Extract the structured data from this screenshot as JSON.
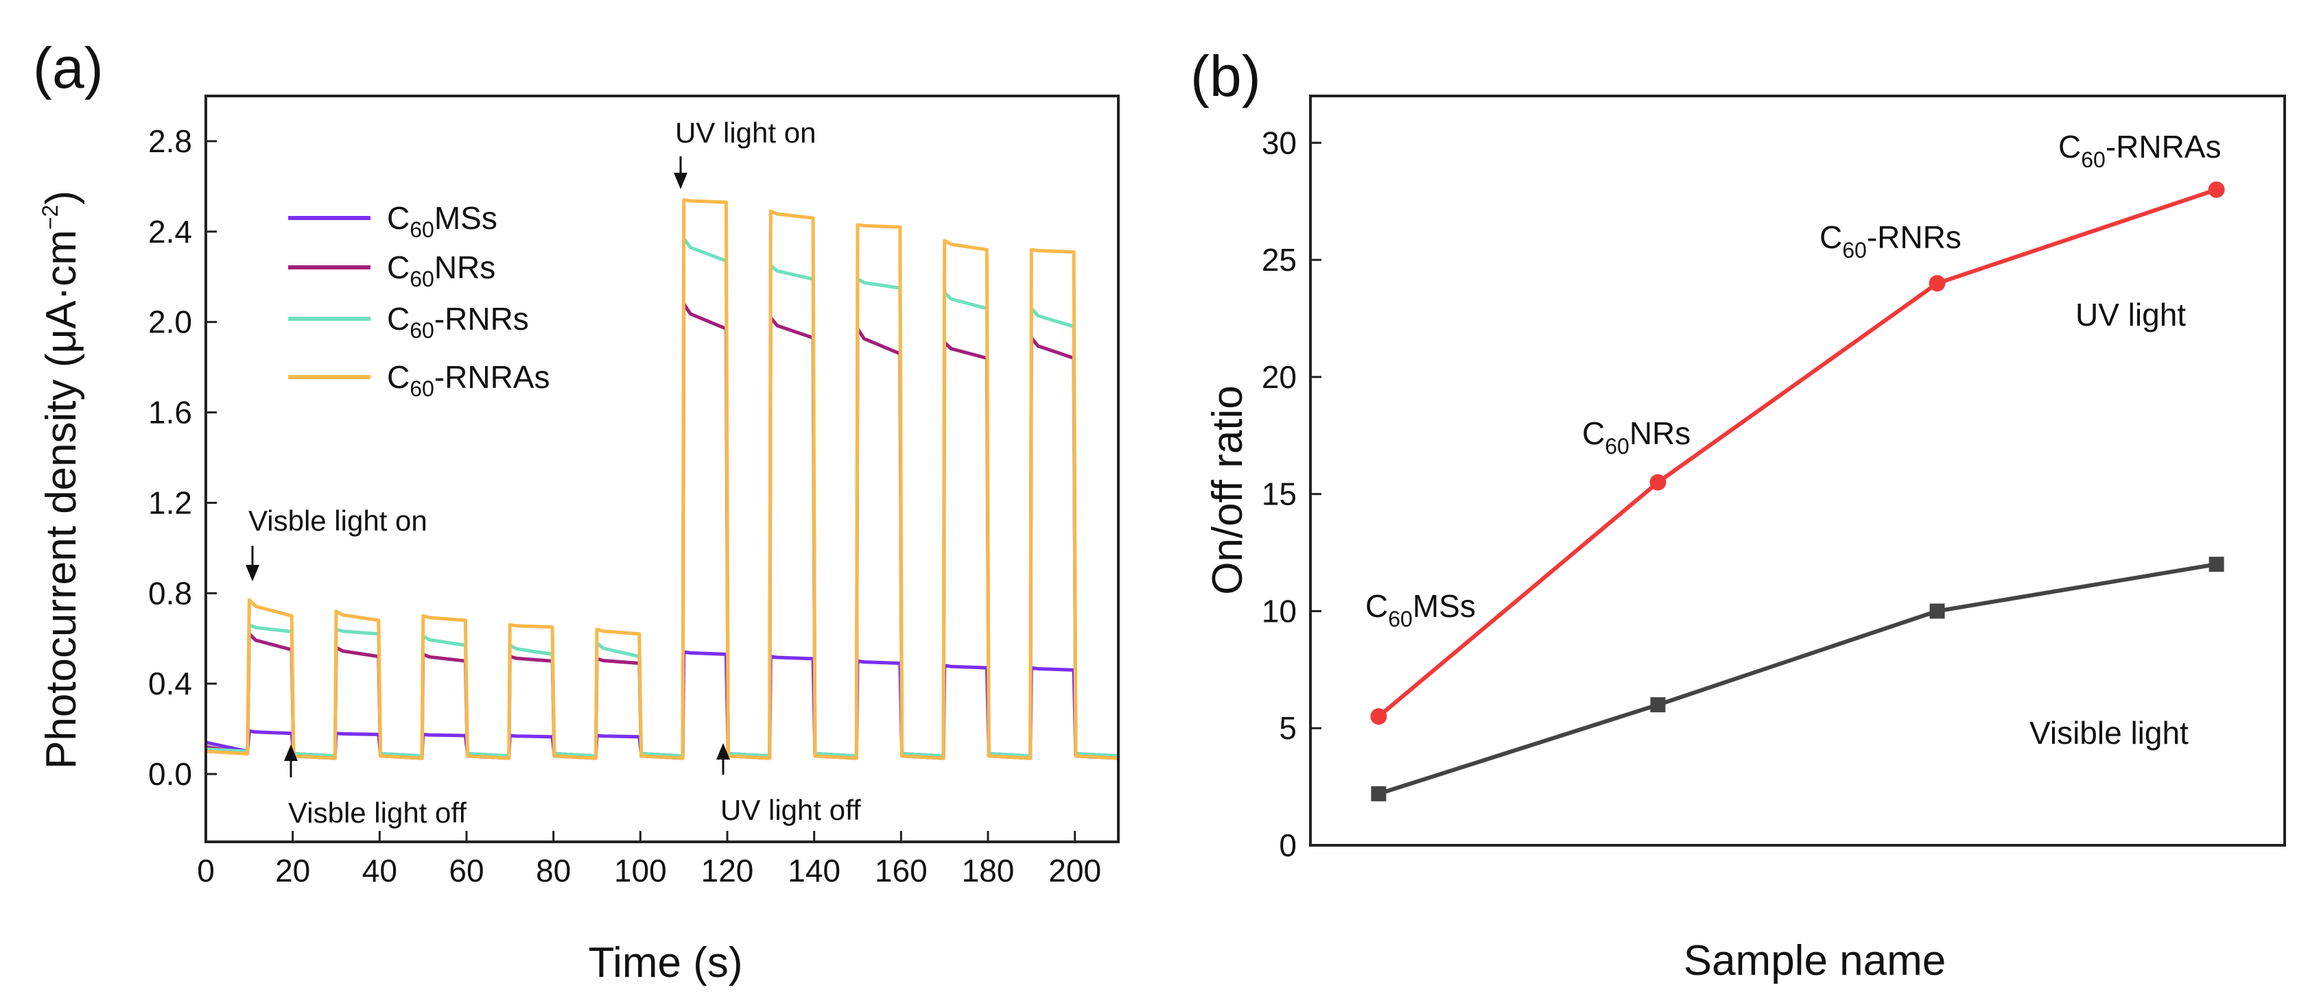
{
  "chart_data": [
    {
      "panel": "(a)",
      "type": "line",
      "xlabel": "Time (s)",
      "ylabel": "Photocurrent density (μA·cm⁻²)",
      "ylabel_parts": {
        "main": "Photocurrent density (μA·cm",
        "sup": "−2",
        "close": ")"
      },
      "xlim": [
        0,
        210
      ],
      "ylim": [
        -0.3,
        3.0
      ],
      "xticks": [
        0,
        20,
        40,
        60,
        80,
        100,
        120,
        140,
        160,
        180,
        200
      ],
      "yticks": [
        0.0,
        0.4,
        0.8,
        1.2,
        1.6,
        2.0,
        2.4,
        2.8
      ],
      "ytick_labels": [
        "0.0",
        "0.4",
        "0.8",
        "1.2",
        "1.6",
        "2.0",
        "2.4",
        "2.8"
      ],
      "legend_position": "upper-left",
      "pulse_cycles": [
        {
          "on": 10,
          "off": 20
        },
        {
          "on": 30,
          "off": 40
        },
        {
          "on": 50,
          "off": 60
        },
        {
          "on": 70,
          "off": 80
        },
        {
          "on": 90,
          "off": 100
        },
        {
          "on": 110,
          "off": 120
        },
        {
          "on": 130,
          "off": 140
        },
        {
          "on": 150,
          "off": 160
        },
        {
          "on": 170,
          "off": 180
        },
        {
          "on": 190,
          "off": 200
        }
      ],
      "series": [
        {
          "name": "C60MSs",
          "label_parts": {
            "pre": "C",
            "sub": "60",
            "post": "MSs"
          },
          "color": "#7b2ff0",
          "dark_start": 0.14,
          "dark_baseline": 0.09,
          "on_values": [
            [
              0.19,
              0.18
            ],
            [
              0.18,
              0.175
            ],
            [
              0.175,
              0.17
            ],
            [
              0.17,
              0.165
            ],
            [
              0.17,
              0.165
            ],
            [
              0.54,
              0.53
            ],
            [
              0.52,
              0.51
            ],
            [
              0.5,
              0.49
            ],
            [
              0.48,
              0.47
            ],
            [
              0.47,
              0.46
            ]
          ]
        },
        {
          "name": "C60NRs",
          "label_parts": {
            "pre": "C",
            "sub": "60",
            "post": "NRs"
          },
          "color": "#a31f7a",
          "dark_start": 0.12,
          "dark_baseline": 0.08,
          "on_values": [
            [
              0.62,
              0.55
            ],
            [
              0.56,
              0.52
            ],
            [
              0.53,
              0.5
            ],
            [
              0.52,
              0.5
            ],
            [
              0.51,
              0.49
            ],
            [
              2.08,
              1.97
            ],
            [
              2.02,
              1.93
            ],
            [
              1.97,
              1.86
            ],
            [
              1.91,
              1.84
            ],
            [
              1.93,
              1.84
            ]
          ]
        },
        {
          "name": "C60-RNRs",
          "label_parts": {
            "pre": "C",
            "sub": "60",
            "post": "-RNRs"
          },
          "color": "#6fe0c0",
          "dark_start": 0.11,
          "dark_baseline": 0.09,
          "on_values": [
            [
              0.66,
              0.63
            ],
            [
              0.64,
              0.62
            ],
            [
              0.61,
              0.57
            ],
            [
              0.57,
              0.53
            ],
            [
              0.58,
              0.52
            ],
            [
              2.37,
              2.27
            ],
            [
              2.25,
              2.19
            ],
            [
              2.19,
              2.15
            ],
            [
              2.13,
              2.06
            ],
            [
              2.06,
              1.98
            ]
          ]
        },
        {
          "name": "C60-RNRAs",
          "label_parts": {
            "pre": "C",
            "sub": "60",
            "post": "-RNRAs"
          },
          "color": "#f9b84b",
          "dark_start": 0.1,
          "dark_baseline": 0.08,
          "on_values": [
            [
              0.77,
              0.7
            ],
            [
              0.72,
              0.68
            ],
            [
              0.7,
              0.68
            ],
            [
              0.66,
              0.65
            ],
            [
              0.64,
              0.62
            ],
            [
              2.54,
              2.53
            ],
            [
              2.49,
              2.46
            ],
            [
              2.43,
              2.42
            ],
            [
              2.36,
              2.32
            ],
            [
              2.32,
              2.31
            ]
          ]
        }
      ],
      "annotations": {
        "visible_on": {
          "text": "Visble light on",
          "x": 10,
          "y": 0.77
        },
        "visible_off": {
          "text": "Visble light off",
          "x": 20,
          "y": 0.07
        },
        "uv_on": {
          "text": "UV light on",
          "x": 110,
          "y": 2.54
        },
        "uv_off": {
          "text": "UV light off",
          "x": 120,
          "y": 0.07
        }
      }
    },
    {
      "panel": "(b)",
      "type": "line",
      "xlabel": "Sample name",
      "ylabel": "On/off ratio",
      "ylim": [
        0,
        32
      ],
      "yticks": [
        0,
        5,
        10,
        15,
        20,
        25,
        30
      ],
      "categories": [
        "C60MSs",
        "C60NRs",
        "C60-RNRs",
        "C60-RNRAs"
      ],
      "category_label_parts": [
        {
          "pre": "C",
          "sub": "60",
          "post": "MSs"
        },
        {
          "pre": "C",
          "sub": "60",
          "post": "NRs"
        },
        {
          "pre": "C",
          "sub": "60",
          "post": "-RNRs"
        },
        {
          "pre": "C",
          "sub": "60",
          "post": "-RNRAs"
        }
      ],
      "series": [
        {
          "name": "UV light",
          "color": "#f03a3a",
          "marker": "circle",
          "values": [
            5.5,
            15.5,
            24.0,
            28.0
          ]
        },
        {
          "name": "Visible light",
          "color": "#444444",
          "marker": "square",
          "values": [
            2.2,
            6.0,
            10.0,
            12.0
          ]
        }
      ]
    }
  ]
}
